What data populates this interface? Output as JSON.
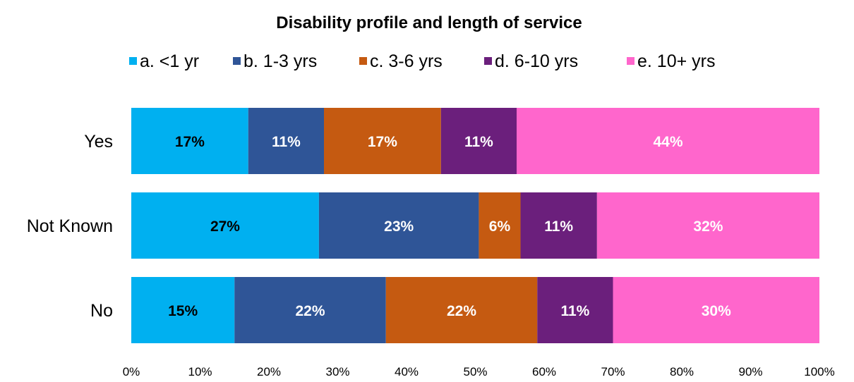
{
  "chart_data": {
    "type": "bar",
    "orientation": "horizontal",
    "stacked": true,
    "title": "Disability profile and length of service",
    "categories": [
      "Yes",
      "Not Known",
      "No"
    ],
    "series": [
      {
        "name": "a. <1 yr",
        "color": "#00B0F0",
        "label_color": "#000000",
        "values": [
          17,
          27,
          15
        ],
        "labels": [
          "17%",
          "27%",
          "15%"
        ]
      },
      {
        "name": "b. 1-3 yrs",
        "color": "#2F5597",
        "label_color": "#ffffff",
        "values": [
          11,
          23,
          22
        ],
        "labels": [
          "11%",
          "23%",
          "22%"
        ]
      },
      {
        "name": "c. 3-6 yrs",
        "color": "#C55A11",
        "label_color": "#ffffff",
        "values": [
          17,
          6,
          22
        ],
        "labels": [
          "17%",
          "6%",
          "22%"
        ]
      },
      {
        "name": "d. 6-10 yrs",
        "color": "#6B1F7C",
        "label_color": "#ffffff",
        "values": [
          11,
          11,
          11
        ],
        "labels": [
          "11%",
          "11%",
          "11%"
        ]
      },
      {
        "name": "e. 10+ yrs",
        "color": "#FF66CC",
        "label_color": "#ffffff",
        "values": [
          44,
          32,
          30
        ],
        "labels": [
          "44%",
          "32%",
          "30%"
        ]
      }
    ],
    "x_ticks": [
      "0%",
      "10%",
      "20%",
      "30%",
      "40%",
      "50%",
      "60%",
      "70%",
      "80%",
      "90%",
      "100%"
    ],
    "xlim": [
      0,
      100
    ],
    "grid": false,
    "legend_position": "top"
  }
}
